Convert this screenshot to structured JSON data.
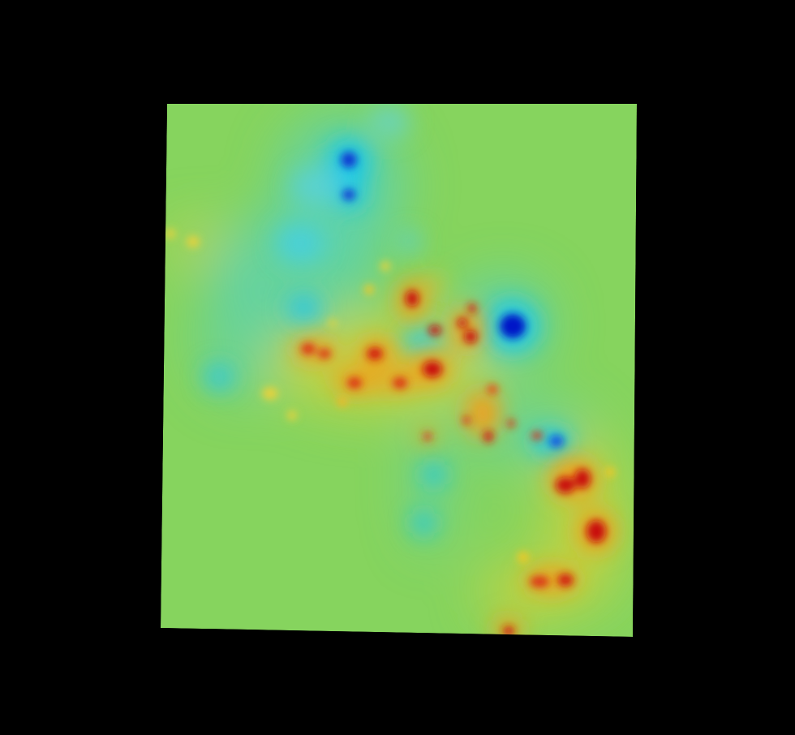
{
  "map": {
    "type": "interpolated-heat-surface",
    "colormap": "jet",
    "background_color": "#000000",
    "base_value_color": "#86d45e",
    "palette": {
      "deep_low": "#0014c8",
      "low": "#0a78e6",
      "mid_low": "#1ec8e6",
      "light_low": "#5ad2b4",
      "base": "#86d45e",
      "light_high": "#e6d23c",
      "high": "#f0a01e",
      "mid_high": "#e65014",
      "deep_high": "#c80a0a"
    },
    "hotspots": [
      {
        "label": "high",
        "value": 0.85
      },
      {
        "label": "high",
        "value": 0.7
      },
      {
        "label": "high",
        "value": 0.75
      },
      {
        "label": "high",
        "value": 0.95
      },
      {
        "label": "high",
        "value": 0.8
      },
      {
        "label": "high",
        "value": 0.9
      },
      {
        "label": "high",
        "value": 0.85
      },
      {
        "label": "high",
        "value": 0.95
      },
      {
        "label": "high",
        "value": 0.9
      },
      {
        "label": "high",
        "value": 0.8
      },
      {
        "label": "high",
        "value": 0.75
      },
      {
        "label": "high",
        "value": 0.6
      }
    ],
    "coldspots": [
      {
        "label": "low",
        "value": -1.0
      },
      {
        "label": "low",
        "value": -0.85
      },
      {
        "label": "low",
        "value": -0.8
      },
      {
        "label": "low",
        "value": -0.6
      },
      {
        "label": "low",
        "value": -0.55
      },
      {
        "label": "low",
        "value": -0.5
      }
    ]
  }
}
